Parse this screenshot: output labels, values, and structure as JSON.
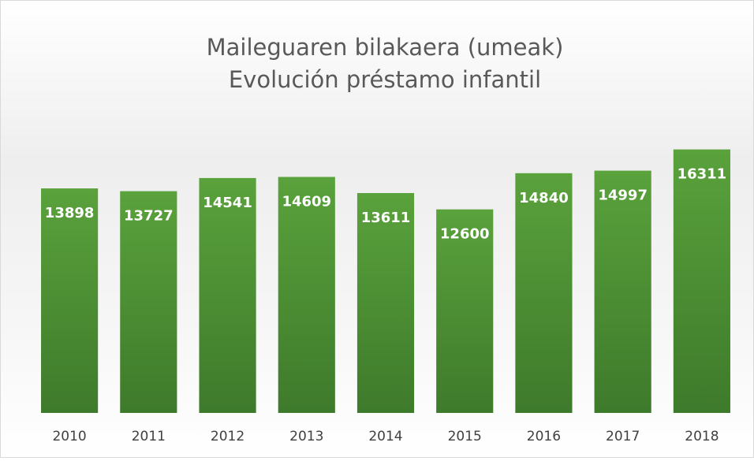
{
  "chart_data": {
    "type": "bar",
    "title": [
      "Maileguaren bilakaera (umeak)",
      "Evolución préstamo infantil"
    ],
    "categories": [
      "2010",
      "2011",
      "2012",
      "2013",
      "2014",
      "2015",
      "2016",
      "2017",
      "2018"
    ],
    "values": [
      13898,
      13727,
      14541,
      14609,
      13611,
      12600,
      14840,
      14997,
      16311
    ],
    "color": "#4e8f35",
    "ylim": [
      0,
      18000
    ]
  }
}
